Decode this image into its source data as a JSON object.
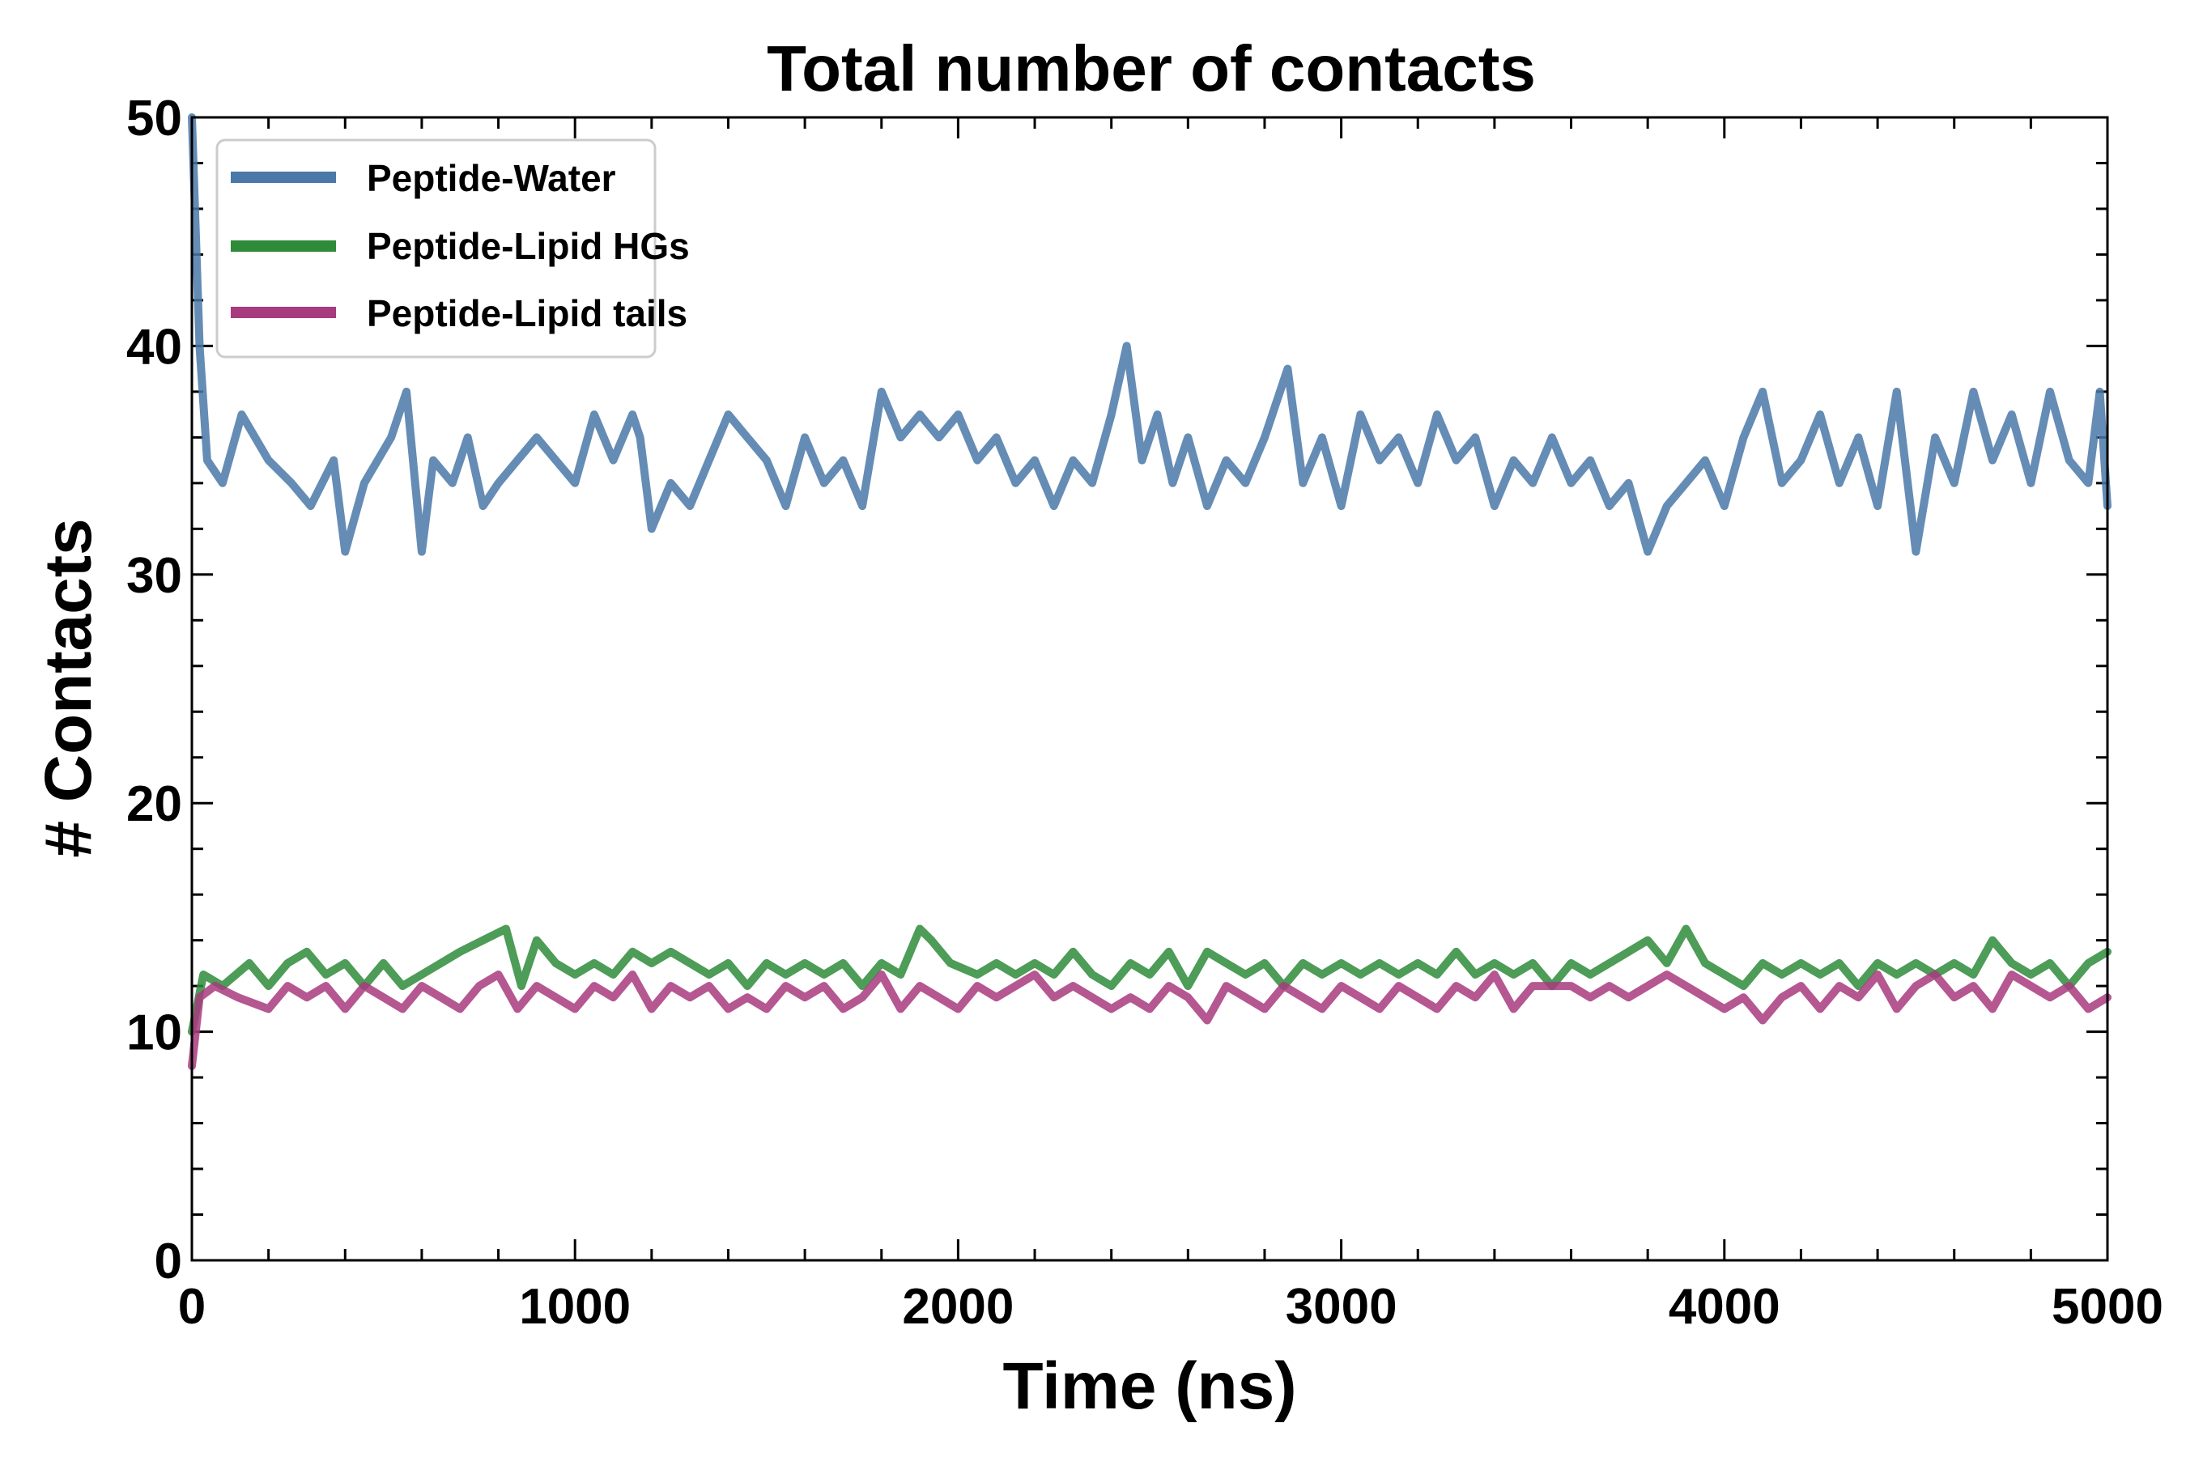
{
  "chart_data": {
    "type": "line",
    "title": "Total number of contacts",
    "xlabel": "Time (ns)",
    "ylabel": "# Contacts",
    "xlim": [
      0,
      5000
    ],
    "ylim": [
      0,
      50
    ],
    "xticks": [
      0,
      1000,
      2000,
      3000,
      4000,
      5000
    ],
    "xtick_labels": [
      "0",
      "1000",
      "2000",
      "3000",
      "4000",
      "5000"
    ],
    "yticks": [
      0,
      10,
      20,
      30,
      40,
      50
    ],
    "ytick_labels": [
      "0",
      "10",
      "20",
      "30",
      "40",
      "50"
    ],
    "grid": false,
    "legend_position": "top-left",
    "series": [
      {
        "name": "Peptide-Water",
        "color": "#4a78a8",
        "x": [
          0,
          20,
          40,
          80,
          130,
          200,
          260,
          310,
          370,
          400,
          450,
          520,
          560,
          600,
          630,
          680,
          720,
          760,
          800,
          850,
          900,
          950,
          1000,
          1050,
          1100,
          1150,
          1170,
          1200,
          1250,
          1300,
          1350,
          1400,
          1450,
          1500,
          1550,
          1600,
          1650,
          1700,
          1750,
          1800,
          1850,
          1900,
          1950,
          2000,
          2050,
          2100,
          2150,
          2200,
          2250,
          2300,
          2350,
          2400,
          2440,
          2480,
          2520,
          2560,
          2600,
          2650,
          2700,
          2750,
          2800,
          2860,
          2900,
          2950,
          3000,
          3050,
          3100,
          3150,
          3200,
          3250,
          3300,
          3350,
          3400,
          3450,
          3500,
          3550,
          3600,
          3650,
          3700,
          3750,
          3800,
          3850,
          3900,
          3950,
          4000,
          4050,
          4100,
          4150,
          4200,
          4250,
          4300,
          4350,
          4400,
          4450,
          4500,
          4550,
          4600,
          4650,
          4700,
          4750,
          4800,
          4850,
          4900,
          4950,
          4980,
          5000
        ],
        "values": [
          50,
          40,
          35,
          34,
          37,
          35,
          34,
          33,
          35,
          31,
          34,
          36,
          38,
          31,
          35,
          34,
          36,
          33,
          34,
          35,
          36,
          35,
          34,
          37,
          35,
          37,
          36,
          32,
          34,
          33,
          35,
          37,
          36,
          35,
          33,
          36,
          34,
          35,
          33,
          38,
          36,
          37,
          36,
          37,
          35,
          36,
          34,
          35,
          33,
          35,
          34,
          37,
          40,
          35,
          37,
          34,
          36,
          33,
          35,
          34,
          36,
          39,
          34,
          36,
          33,
          37,
          35,
          36,
          34,
          37,
          35,
          36,
          33,
          35,
          34,
          36,
          34,
          35,
          33,
          34,
          31,
          33,
          34,
          35,
          33,
          36,
          38,
          34,
          35,
          37,
          34,
          36,
          33,
          38,
          31,
          36,
          34,
          38,
          35,
          37,
          34,
          38,
          35,
          34,
          38,
          33
        ]
      },
      {
        "name": "Peptide-Lipid HGs",
        "color": "#2e8b3a",
        "x": [
          0,
          30,
          80,
          150,
          200,
          250,
          300,
          350,
          400,
          450,
          500,
          550,
          600,
          650,
          700,
          760,
          820,
          860,
          900,
          950,
          1000,
          1050,
          1100,
          1150,
          1200,
          1250,
          1300,
          1350,
          1400,
          1450,
          1500,
          1550,
          1600,
          1650,
          1700,
          1750,
          1800,
          1850,
          1900,
          1930,
          1980,
          2050,
          2100,
          2150,
          2200,
          2250,
          2300,
          2350,
          2400,
          2450,
          2500,
          2550,
          2600,
          2650,
          2700,
          2750,
          2800,
          2850,
          2900,
          2950,
          3000,
          3050,
          3100,
          3150,
          3200,
          3250,
          3300,
          3350,
          3400,
          3450,
          3500,
          3550,
          3600,
          3650,
          3700,
          3750,
          3800,
          3850,
          3900,
          3950,
          4000,
          4050,
          4100,
          4150,
          4200,
          4250,
          4300,
          4350,
          4400,
          4450,
          4500,
          4550,
          4600,
          4650,
          4700,
          4750,
          4800,
          4850,
          4900,
          4950,
          5000
        ],
        "values": [
          10,
          12.5,
          12,
          13,
          12,
          13,
          13.5,
          12.5,
          13,
          12,
          13,
          12,
          12.5,
          13,
          13.5,
          14,
          14.5,
          12,
          14,
          13,
          12.5,
          13,
          12.5,
          13.5,
          13,
          13.5,
          13,
          12.5,
          13,
          12,
          13,
          12.5,
          13,
          12.5,
          13,
          12,
          13,
          12.5,
          14.5,
          14,
          13,
          12.5,
          13,
          12.5,
          13,
          12.5,
          13.5,
          12.5,
          12,
          13,
          12.5,
          13.5,
          12,
          13.5,
          13,
          12.5,
          13,
          12,
          13,
          12.5,
          13,
          12.5,
          13,
          12.5,
          13,
          12.5,
          13.5,
          12.5,
          13,
          12.5,
          13,
          12,
          13,
          12.5,
          13,
          13.5,
          14,
          13,
          14.5,
          13,
          12.5,
          12,
          13,
          12.5,
          13,
          12.5,
          13,
          12,
          13,
          12.5,
          13,
          12.5,
          13,
          12.5,
          14,
          13,
          12.5,
          13,
          12,
          13,
          13.5
        ]
      },
      {
        "name": "Peptide-Lipid tails",
        "color": "#a83a7e",
        "x": [
          0,
          20,
          60,
          120,
          200,
          250,
          300,
          350,
          400,
          450,
          500,
          550,
          600,
          650,
          700,
          750,
          800,
          850,
          900,
          950,
          1000,
          1050,
          1100,
          1150,
          1200,
          1250,
          1300,
          1350,
          1400,
          1450,
          1500,
          1550,
          1600,
          1650,
          1700,
          1750,
          1800,
          1850,
          1900,
          1950,
          2000,
          2050,
          2100,
          2150,
          2200,
          2250,
          2300,
          2350,
          2400,
          2450,
          2500,
          2550,
          2600,
          2650,
          2700,
          2750,
          2800,
          2850,
          2900,
          2950,
          3000,
          3050,
          3100,
          3150,
          3200,
          3250,
          3300,
          3350,
          3400,
          3450,
          3500,
          3550,
          3600,
          3650,
          3700,
          3750,
          3800,
          3850,
          3900,
          3950,
          4000,
          4050,
          4100,
          4150,
          4200,
          4250,
          4300,
          4350,
          4400,
          4450,
          4500,
          4550,
          4600,
          4650,
          4700,
          4750,
          4800,
          4850,
          4900,
          4950,
          5000
        ],
        "values": [
          8.5,
          11.5,
          12,
          11.5,
          11,
          12,
          11.5,
          12,
          11,
          12,
          11.5,
          11,
          12,
          11.5,
          11,
          12,
          12.5,
          11,
          12,
          11.5,
          11,
          12,
          11.5,
          12.5,
          11,
          12,
          11.5,
          12,
          11,
          11.5,
          11,
          12,
          11.5,
          12,
          11,
          11.5,
          12.5,
          11,
          12,
          11.5,
          11,
          12,
          11.5,
          12,
          12.5,
          11.5,
          12,
          11.5,
          11,
          11.5,
          11,
          12,
          11.5,
          10.5,
          12,
          11.5,
          11,
          12,
          11.5,
          11,
          12,
          11.5,
          11,
          12,
          11.5,
          11,
          12,
          11.5,
          12.5,
          11,
          12,
          12,
          12,
          11.5,
          12,
          11.5,
          12,
          12.5,
          12,
          11.5,
          11,
          11.5,
          10.5,
          11.5,
          12,
          11,
          12,
          11.5,
          12.5,
          11,
          12,
          12.5,
          11.5,
          12,
          11,
          12.5,
          12,
          11.5,
          12,
          11,
          11.5
        ]
      }
    ]
  }
}
